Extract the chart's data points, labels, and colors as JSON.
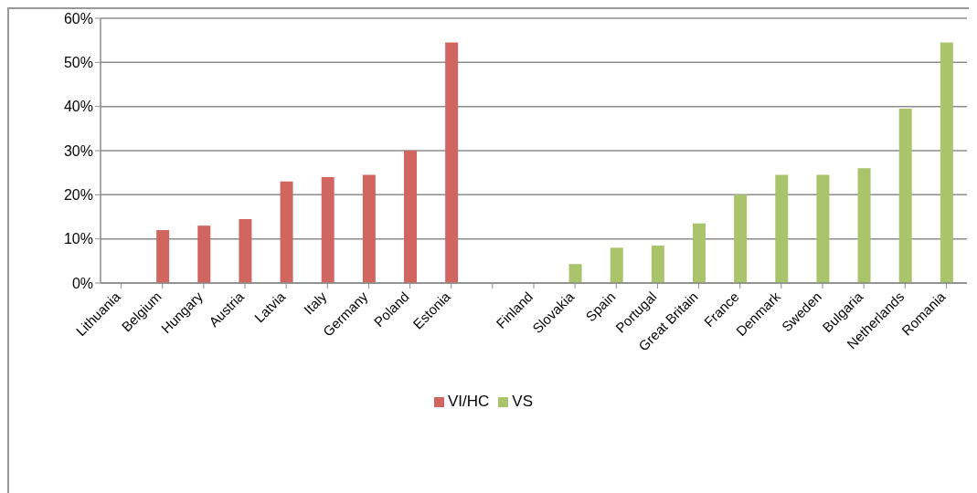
{
  "chart_data": {
    "type": "bar",
    "categories": [
      "Lithuania",
      "Belgium",
      "Hungary",
      "Austria",
      "Latvia",
      "Italy",
      "Germany",
      "Poland",
      "Estonia",
      null,
      "Finland",
      "Slovakia",
      "Spain",
      "Portugal",
      "Great Britain",
      "France",
      "Denmark",
      "Sweden",
      "Bulgaria",
      "Netherlands",
      "Romania"
    ],
    "series": [
      {
        "name": "VI/HC",
        "color": "#d0665f",
        "values": [
          0,
          12,
          13,
          14.5,
          23,
          24,
          24.5,
          30,
          54.5,
          null,
          null,
          null,
          null,
          null,
          null,
          null,
          null,
          null,
          null,
          null,
          null
        ]
      },
      {
        "name": "VS",
        "color": "#a9c46a",
        "values": [
          null,
          null,
          null,
          null,
          null,
          null,
          null,
          null,
          null,
          null,
          0,
          4.3,
          8,
          8.5,
          13.5,
          20,
          24.5,
          24.5,
          26,
          39.5,
          54.5
        ]
      }
    ],
    "stacked": true,
    "ylim": [
      0,
      60
    ],
    "yticks": [
      {
        "value": 0,
        "label": "0%"
      },
      {
        "value": 10,
        "label": "10%"
      },
      {
        "value": 20,
        "label": "20%"
      },
      {
        "value": 30,
        "label": "30%"
      },
      {
        "value": 40,
        "label": "40%"
      },
      {
        "value": 50,
        "label": "50%"
      },
      {
        "value": 60,
        "label": "60%"
      }
    ],
    "grid": "y",
    "legend": "bottom"
  }
}
